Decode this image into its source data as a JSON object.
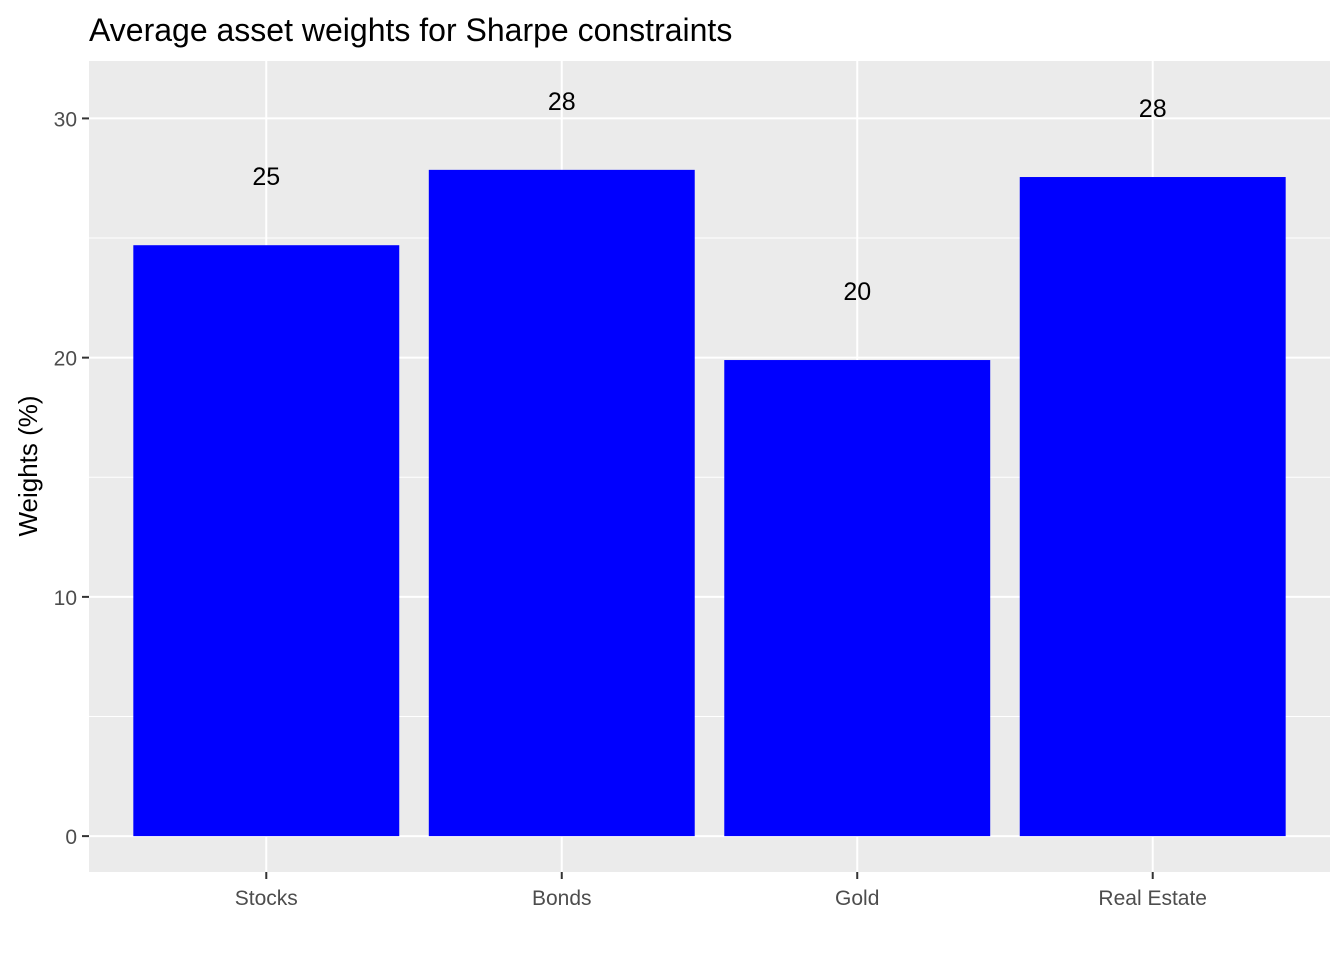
{
  "chart_data": {
    "type": "bar",
    "title": "Average asset weights for Sharpe constraints",
    "xlabel": "",
    "ylabel": "Weights (%)",
    "categories": [
      "Stocks",
      "Bonds",
      "Gold",
      "Real Estate"
    ],
    "values": [
      24.7,
      27.85,
      19.9,
      27.55
    ],
    "data_labels": [
      "25",
      "28",
      "20",
      "28"
    ],
    "yticks": [
      0,
      10,
      20,
      30
    ],
    "ytick_labels": [
      "0",
      "10",
      "20",
      "30"
    ],
    "ylim": [
      -1.5,
      32.4
    ],
    "grid": true,
    "legend": "none",
    "bar_color": "#0000ff",
    "panel_color": "#ebebeb",
    "grid_color": "#ffffff"
  }
}
